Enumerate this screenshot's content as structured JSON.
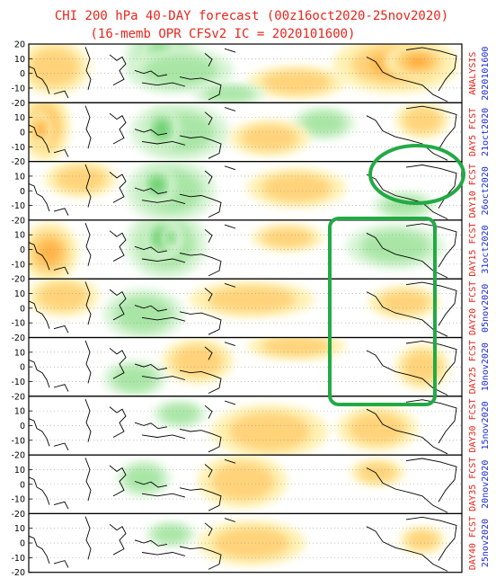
{
  "title_line1": "CHI 200 hPa 40-DAY forecast (00z16oct2020-25nov2020)",
  "title_line2": "(16-memb OPR CFSv2 IC = 2020101600)",
  "colors": {
    "title": "#e8251a",
    "lead": "#e8251a",
    "date": "#1a2bd6",
    "highlight": "#22aa44",
    "positive_anomaly": "#f5a623",
    "negative_anomaly": "#3cc35a"
  },
  "chart_data": {
    "type": "heatmap",
    "title": "CHI 200 hPa 40-DAY forecast (00z16oct2020-25nov2020)",
    "subtitle": "(16-memb OPR CFSv2 IC = 2020101600)",
    "y_ticks": [
      "20",
      "10",
      "0",
      "-10",
      "-20"
    ],
    "ylim": [
      -20,
      20
    ],
    "grid": true,
    "panels": [
      {
        "lead": "ANALYSIS",
        "date": "2020101600"
      },
      {
        "lead": "DAY5 FCST",
        "date": "21oct2020"
      },
      {
        "lead": "DAY10 FCST",
        "date": "26oct2020"
      },
      {
        "lead": "DAY15 FCST",
        "date": "31oct2020"
      },
      {
        "lead": "DAY20 FCST",
        "date": "05nov2020"
      },
      {
        "lead": "DAY25 FCST",
        "date": "10nov2020"
      },
      {
        "lead": "DAY30 FCST",
        "date": "15nov2020"
      },
      {
        "lead": "DAY35 FCST",
        "date": "20nov2020"
      },
      {
        "lead": "DAY40 FCST",
        "date": "25nov2020"
      }
    ],
    "annotations": [
      {
        "shape": "ellipse",
        "color": "green",
        "panel": "DAY10 FCST",
        "region": "South America"
      },
      {
        "shape": "rounded-rectangle",
        "color": "green",
        "panels": [
          "DAY15 FCST",
          "DAY20 FCST",
          "DAY25 FCST"
        ],
        "region": "South America"
      }
    ]
  }
}
